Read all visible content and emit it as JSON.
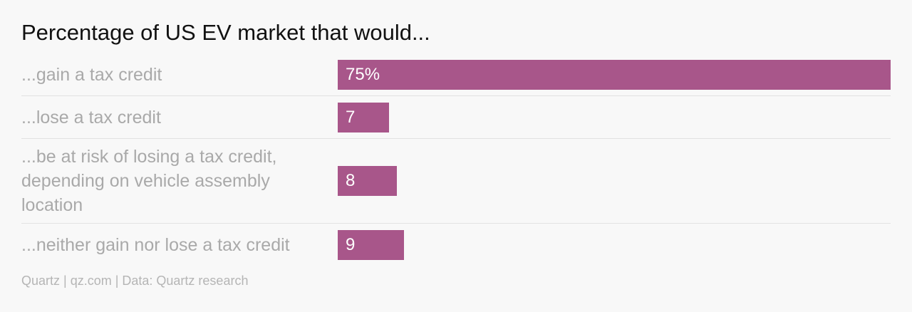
{
  "chart_data": {
    "type": "bar",
    "orientation": "horizontal",
    "title": "Percentage of US EV market that would...",
    "categories": [
      "...gain a tax credit",
      "...lose a tax credit",
      "...be at risk of losing a tax credit, depending on vehicle assembly location",
      "...neither gain nor lose a tax credit"
    ],
    "values": [
      75,
      7,
      8,
      9
    ],
    "value_labels": [
      "75%",
      "7",
      "8",
      "9"
    ],
    "color": "#a8568a",
    "source": "Quartz | qz.com | Data: Quartz research"
  }
}
